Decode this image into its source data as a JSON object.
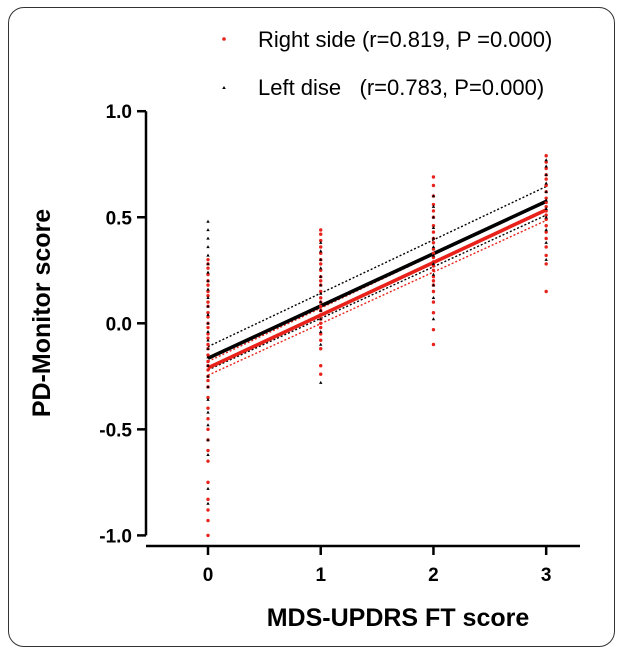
{
  "chart_data": {
    "type": "scatter",
    "xlabel": "MDS-UPDRS FT score",
    "ylabel": "PD-Monitor score",
    "xlim": [
      -0.55,
      3.3
    ],
    "ylim": [
      -1.05,
      1.1
    ],
    "x_ticks": [
      0,
      1,
      2,
      3
    ],
    "x_tick_labels": [
      "0",
      "1",
      "2",
      "3"
    ],
    "y_ticks": [
      1.0,
      0.5,
      0.0,
      -0.5,
      -1.0
    ],
    "y_tick_labels": [
      "1.0",
      "0.5",
      "0.0",
      "-0.5",
      "-1.0"
    ],
    "grid": false,
    "legend_position": "top",
    "series": [
      {
        "name": "Right side (r=0.819, P =0.000)",
        "color": "#e8221b",
        "marker": "dot",
        "points": [
          [
            0,
            -1.0
          ],
          [
            0,
            -0.93
          ],
          [
            0,
            -0.88
          ],
          [
            0,
            -0.83
          ],
          [
            0,
            -0.75
          ],
          [
            0,
            -0.65
          ],
          [
            0,
            -0.6
          ],
          [
            0,
            -0.55
          ],
          [
            0,
            -0.5
          ],
          [
            0,
            -0.45
          ],
          [
            0,
            -0.4
          ],
          [
            0,
            -0.35
          ],
          [
            0,
            -0.3
          ],
          [
            0,
            -0.27
          ],
          [
            0,
            -0.25
          ],
          [
            0,
            -0.22
          ],
          [
            0,
            -0.2
          ],
          [
            0,
            -0.18
          ],
          [
            0,
            -0.15
          ],
          [
            0,
            -0.12
          ],
          [
            0,
            -0.1
          ],
          [
            0,
            -0.07
          ],
          [
            0,
            -0.05
          ],
          [
            0,
            -0.02
          ],
          [
            0,
            0.0
          ],
          [
            0,
            0.03
          ],
          [
            0,
            0.05
          ],
          [
            0,
            0.08
          ],
          [
            0,
            0.1
          ],
          [
            0,
            0.13
          ],
          [
            0,
            0.15
          ],
          [
            0,
            0.18
          ],
          [
            0,
            0.2
          ],
          [
            0,
            0.23
          ],
          [
            0,
            0.26
          ],
          [
            0,
            0.28
          ],
          [
            0,
            0.3
          ],
          [
            1,
            -0.24
          ],
          [
            1,
            -0.2
          ],
          [
            1,
            -0.12
          ],
          [
            1,
            -0.08
          ],
          [
            1,
            -0.05
          ],
          [
            1,
            -0.02
          ],
          [
            1,
            0.0
          ],
          [
            1,
            0.02
          ],
          [
            1,
            0.04
          ],
          [
            1,
            0.06
          ],
          [
            1,
            0.08
          ],
          [
            1,
            0.1
          ],
          [
            1,
            0.12
          ],
          [
            1,
            0.15
          ],
          [
            1,
            0.18
          ],
          [
            1,
            0.2
          ],
          [
            1,
            0.22
          ],
          [
            1,
            0.25
          ],
          [
            1,
            0.28
          ],
          [
            1,
            0.3
          ],
          [
            1,
            0.33
          ],
          [
            1,
            0.36
          ],
          [
            1,
            0.39
          ],
          [
            1,
            0.42
          ],
          [
            1,
            0.44
          ],
          [
            2,
            -0.1
          ],
          [
            2,
            -0.03
          ],
          [
            2,
            0.05
          ],
          [
            2,
            0.1
          ],
          [
            2,
            0.15
          ],
          [
            2,
            0.18
          ],
          [
            2,
            0.2
          ],
          [
            2,
            0.22
          ],
          [
            2,
            0.25
          ],
          [
            2,
            0.27
          ],
          [
            2,
            0.29
          ],
          [
            2,
            0.31
          ],
          [
            2,
            0.33
          ],
          [
            2,
            0.35
          ],
          [
            2,
            0.38
          ],
          [
            2,
            0.4
          ],
          [
            2,
            0.43
          ],
          [
            2,
            0.46
          ],
          [
            2,
            0.5
          ],
          [
            2,
            0.53
          ],
          [
            2,
            0.56
          ],
          [
            2,
            0.6
          ],
          [
            2,
            0.65
          ],
          [
            2,
            0.69
          ],
          [
            3,
            0.15
          ],
          [
            3,
            0.28
          ],
          [
            3,
            0.32
          ],
          [
            3,
            0.36
          ],
          [
            3,
            0.4
          ],
          [
            3,
            0.43
          ],
          [
            3,
            0.46
          ],
          [
            3,
            0.49
          ],
          [
            3,
            0.51
          ],
          [
            3,
            0.53
          ],
          [
            3,
            0.55
          ],
          [
            3,
            0.57
          ],
          [
            3,
            0.59
          ],
          [
            3,
            0.62
          ],
          [
            3,
            0.65
          ],
          [
            3,
            0.68
          ],
          [
            3,
            0.7
          ],
          [
            3,
            0.73
          ],
          [
            3,
            0.76
          ],
          [
            3,
            0.79
          ]
        ],
        "fit": {
          "y_at_0": -0.21,
          "y_at_3": 0.535,
          "ci_upper": [
            -0.18,
            0.575
          ],
          "ci_lower": [
            -0.245,
            0.485
          ]
        }
      },
      {
        "name": "Left dise   (r=0.783, P=0.000)",
        "color": "#000000",
        "marker": "triangle",
        "points": [
          [
            0,
            -0.85
          ],
          [
            0,
            -0.78
          ],
          [
            0,
            -0.62
          ],
          [
            0,
            -0.55
          ],
          [
            0,
            -0.48
          ],
          [
            0,
            -0.42
          ],
          [
            0,
            -0.36
          ],
          [
            0,
            -0.3
          ],
          [
            0,
            -0.25
          ],
          [
            0,
            -0.2
          ],
          [
            0,
            -0.16
          ],
          [
            0,
            -0.12
          ],
          [
            0,
            -0.08
          ],
          [
            0,
            -0.04
          ],
          [
            0,
            0.0
          ],
          [
            0,
            0.04
          ],
          [
            0,
            0.08
          ],
          [
            0,
            0.12
          ],
          [
            0,
            0.16
          ],
          [
            0,
            0.2
          ],
          [
            0,
            0.24
          ],
          [
            0,
            0.28
          ],
          [
            0,
            0.32
          ],
          [
            0,
            0.36
          ],
          [
            0,
            0.4
          ],
          [
            0,
            0.44
          ],
          [
            0,
            0.48
          ],
          [
            1,
            -0.28
          ],
          [
            1,
            -0.1
          ],
          [
            1,
            -0.04
          ],
          [
            1,
            0.02
          ],
          [
            1,
            0.06
          ],
          [
            1,
            0.1
          ],
          [
            1,
            0.14
          ],
          [
            1,
            0.18
          ],
          [
            1,
            0.22
          ],
          [
            1,
            0.26
          ],
          [
            1,
            0.3
          ],
          [
            1,
            0.34
          ],
          [
            1,
            0.38
          ],
          [
            2,
            0.02
          ],
          [
            2,
            0.12
          ],
          [
            2,
            0.18
          ],
          [
            2,
            0.23
          ],
          [
            2,
            0.28
          ],
          [
            2,
            0.32
          ],
          [
            2,
            0.36
          ],
          [
            2,
            0.4
          ],
          [
            2,
            0.45
          ],
          [
            2,
            0.5
          ],
          [
            2,
            0.55
          ],
          [
            2,
            0.6
          ],
          [
            3,
            0.3
          ],
          [
            3,
            0.38
          ],
          [
            3,
            0.44
          ],
          [
            3,
            0.5
          ],
          [
            3,
            0.54
          ],
          [
            3,
            0.58
          ],
          [
            3,
            0.62
          ],
          [
            3,
            0.66
          ],
          [
            3,
            0.7
          ],
          [
            3,
            0.74
          ],
          [
            3,
            0.77
          ]
        ],
        "fit": {
          "y_at_0": -0.165,
          "y_at_3": 0.575,
          "ci_upper": [
            -0.11,
            0.645
          ],
          "ci_lower": [
            -0.22,
            0.51
          ]
        }
      }
    ]
  }
}
